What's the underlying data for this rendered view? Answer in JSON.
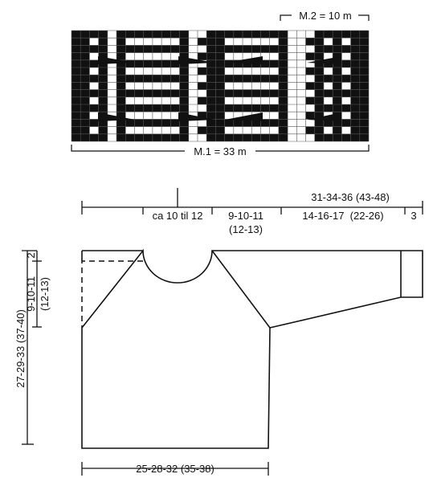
{
  "chart": {
    "m2_label": "M.2 = 10 m",
    "m1_label": "M.1 = 33 m",
    "cols": 33,
    "rows": 15,
    "pattern_rows": [
      "111101111111100111111111000111111",
      "110101000000101110000001001101011",
      "111101111111100111111111000111111",
      "110101000000101110000001001101011",
      "111101111111100111111111000111111",
      "110101000000101110000001001101011",
      "111101111111100111111111000111111",
      "110101000000101110000001001101011",
      "111101111111100111111111000111111",
      "110101000000101110000001001101011",
      "111101111111100111111111000111111",
      "110101000000101110000001001101011",
      "111101111111100111111111000111111",
      "110101000000101110000001001101011",
      "111101111111100111111111000111111"
    ]
  },
  "measurements": {
    "top_total": "31-34-36 (43-48)",
    "neck_half": "ca 10 til 12",
    "shoulder": "9-10-11",
    "shoulder_sub": "(12-13)",
    "sleeve": "14-16-17  (22-26)",
    "cuff": "3",
    "vertical_small": "2",
    "raglan_line1": "9-10-11",
    "raglan_line2": "(12-13)",
    "body_height": "27-29-33 (37-40)",
    "bottom_width": "25-28-32 (35-38)"
  }
}
